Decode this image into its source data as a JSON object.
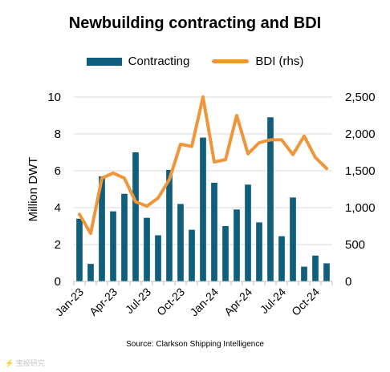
{
  "title": "Newbuilding contracting and BDI",
  "legend": {
    "bars": "Contracting",
    "line": "BDI (rhs)"
  },
  "source": "Source: Clarkson Shipping Intelligence",
  "watermark": "⚡ 宝报研究",
  "colors": {
    "bar": "#0f5e7c",
    "line": "#f0963a",
    "grid": "#d9d9d9"
  },
  "chart_data": {
    "type": "bar+line",
    "ylabel": "Million DWT",
    "ylim": [
      0,
      10
    ],
    "yticks": [
      "0",
      "2",
      "4",
      "6",
      "8",
      "10"
    ],
    "y2lim": [
      0,
      2500
    ],
    "y2ticks": [
      "0",
      "500",
      "1,000",
      "1,500",
      "2,000",
      "2,500"
    ],
    "grid": true,
    "legend_position": "top",
    "x": [
      "Jan-23",
      "Feb-23",
      "Mar-23",
      "Apr-23",
      "May-23",
      "Jun-23",
      "Jul-23",
      "Aug-23",
      "Sep-23",
      "Oct-23",
      "Nov-23",
      "Dec-23",
      "Jan-24",
      "Feb-24",
      "Mar-24",
      "Apr-24",
      "May-24",
      "Jun-24",
      "Jul-24",
      "Aug-24",
      "Sep-24",
      "Oct-24",
      "Nov-24"
    ],
    "xtick_labels": [
      "Jan-23",
      "",
      "",
      "Apr-23",
      "",
      "",
      "Jul-23",
      "",
      "",
      "Oct-23",
      "",
      "",
      "Jan-24",
      "",
      "",
      "Apr-24",
      "",
      "",
      "Jul-24",
      "",
      "",
      "Oct-24",
      ""
    ],
    "series": [
      {
        "name": "Contracting",
        "type": "bar",
        "values": [
          3.4,
          0.95,
          5.7,
          3.8,
          4.75,
          7.0,
          3.45,
          2.5,
          6.05,
          4.2,
          2.8,
          7.8,
          5.35,
          3.0,
          3.9,
          5.25,
          3.2,
          8.9,
          2.45,
          4.55,
          0.8,
          1.4,
          0.98
        ]
      },
      {
        "name": "BDI (rhs)",
        "type": "line",
        "axis": "right",
        "values": [
          910,
          650,
          1400,
          1470,
          1400,
          1080,
          1020,
          1130,
          1380,
          1860,
          1830,
          2500,
          1620,
          1650,
          2250,
          1730,
          1880,
          1920,
          1920,
          1720,
          1970,
          1680,
          1530
        ]
      }
    ]
  }
}
